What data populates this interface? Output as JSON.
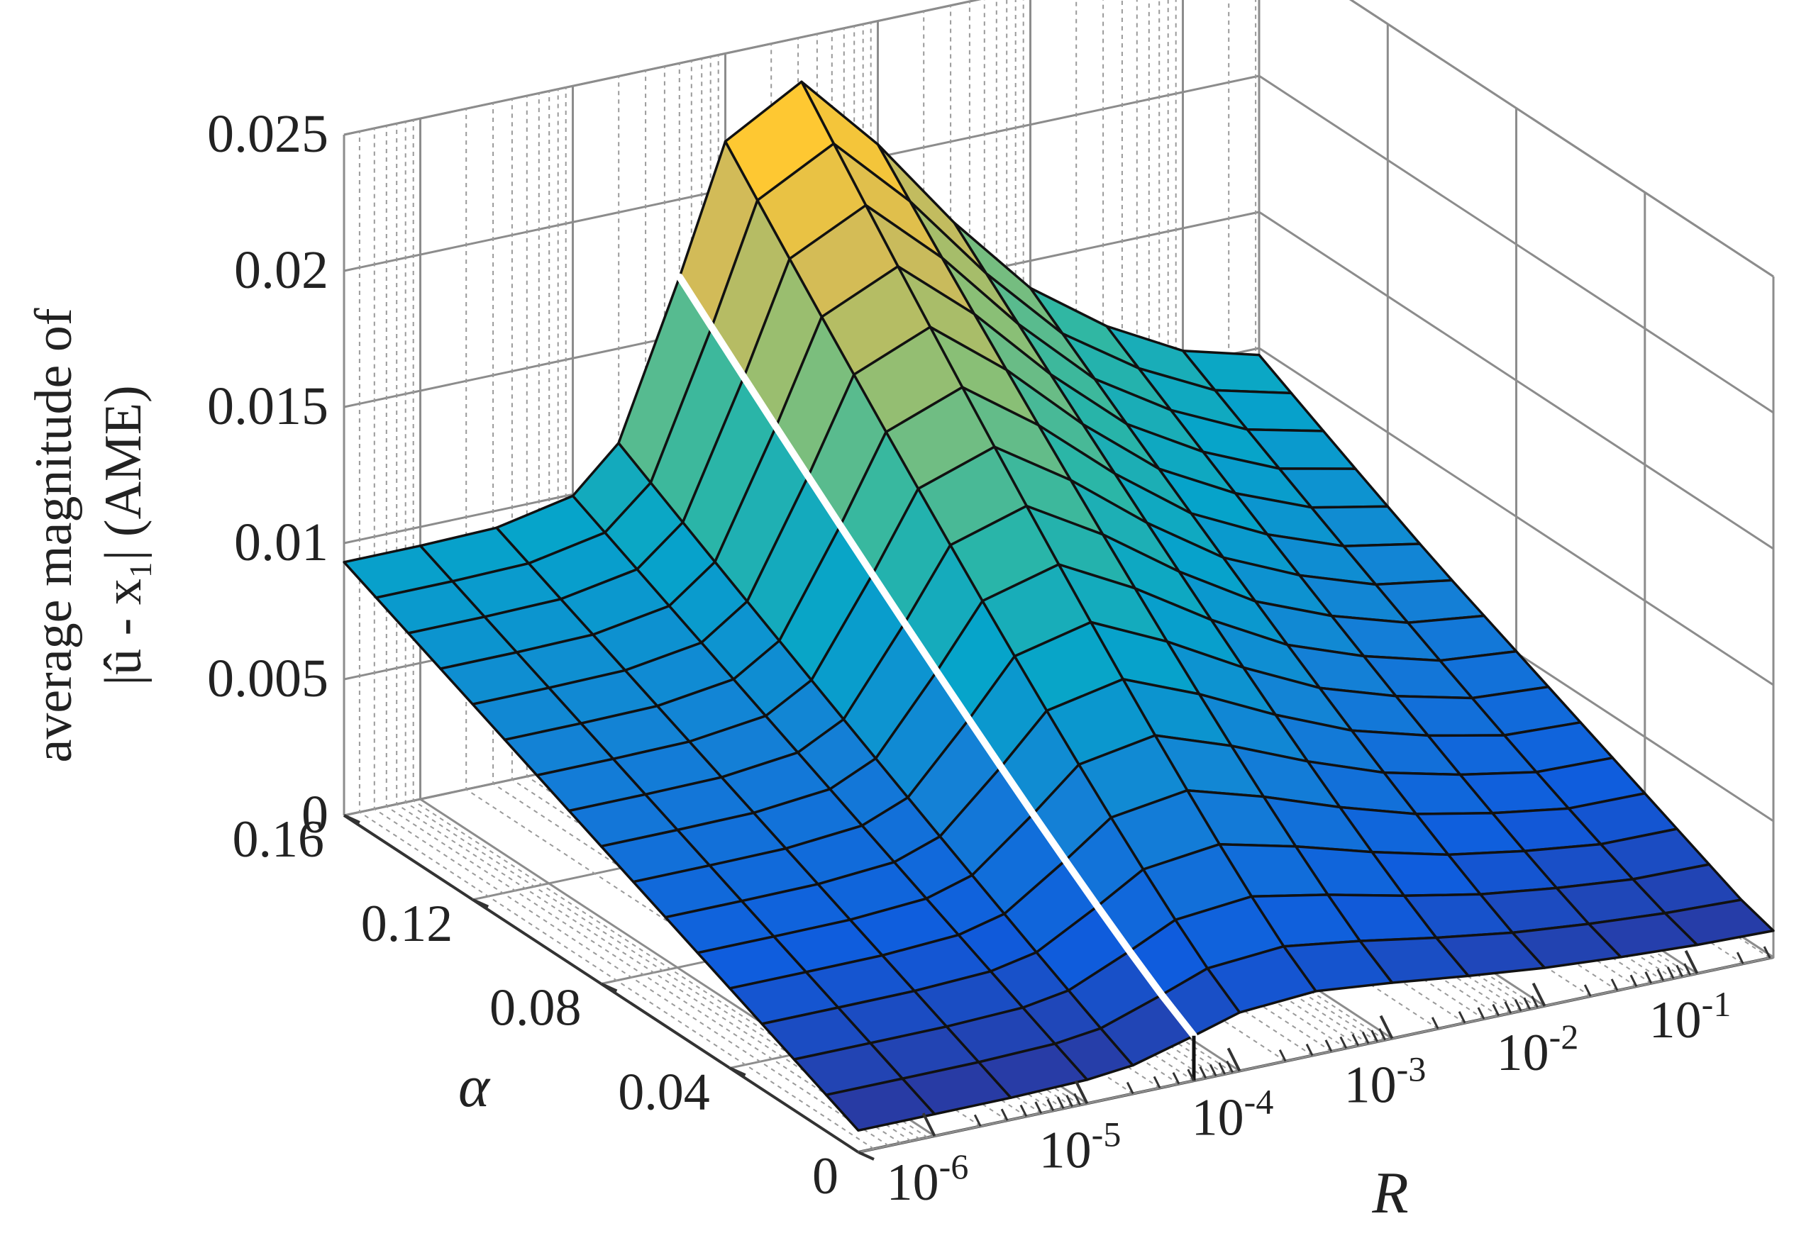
{
  "chart_data": {
    "type": "surface",
    "title": "",
    "zlabel_line1": "average magnitude of",
    "zlabel_line2": "|û - x₁| (AME)",
    "xlabel": "R",
    "ylabel": "α",
    "x_scale": "log",
    "x_range_log10": [
      -6.5,
      -0.5
    ],
    "y_range": [
      0,
      0.16
    ],
    "z_range": [
      0,
      0.025
    ],
    "grid": true,
    "x_ticks": [
      {
        "base": "10",
        "exp": "-6",
        "value": 1e-06
      },
      {
        "base": "10",
        "exp": "-5",
        "value": 1e-05
      },
      {
        "base": "10",
        "exp": "-4",
        "value": 0.0001
      },
      {
        "base": "10",
        "exp": "-3",
        "value": 0.001
      },
      {
        "base": "10",
        "exp": "-2",
        "value": 0.01
      },
      {
        "base": "10",
        "exp": "-1",
        "value": 0.1
      }
    ],
    "y_ticks": [
      "0",
      "0.04",
      "0.08",
      "0.12",
      "0.16"
    ],
    "z_ticks": [
      "0",
      "0.005",
      "0.01",
      "0.015",
      "0.02",
      "0.025"
    ],
    "colormap": [
      "#352a87",
      "#0f5cdd",
      "#1481d6",
      "#06a4ca",
      "#2eb7a4",
      "#87bf77",
      "#d1bb59",
      "#fec832",
      "#f9fb0e"
    ],
    "mesh_color": "#111111",
    "log10R_values": [
      -6.5,
      -6.0,
      -5.5,
      -5.0,
      -4.7,
      -4.3,
      -4.0,
      -3.5,
      -3.0,
      -2.5,
      -2.0,
      -1.5,
      -1.0,
      -0.5
    ],
    "alpha_values": [
      0.0,
      0.01,
      0.02,
      0.03,
      0.04,
      0.05,
      0.06,
      0.07,
      0.08,
      0.09,
      0.1,
      0.11,
      0.12,
      0.13,
      0.14,
      0.15,
      0.16
    ],
    "ame_low_alpha0": 0.0008,
    "ame_low_alpha016": 0.0093,
    "ame_high_alpha0": 0.0025,
    "ame_high_alpha016": 0.025,
    "ame_profile_factor": [
      1.0,
      1.0,
      1.0,
      1.0,
      1.0,
      1.0,
      1.0,
      0.95,
      0.82,
      0.68,
      0.56,
      0.48,
      0.42,
      0.39
    ],
    "highlight_line": {
      "log10R": -4.3,
      "color": "#ffffff"
    }
  }
}
